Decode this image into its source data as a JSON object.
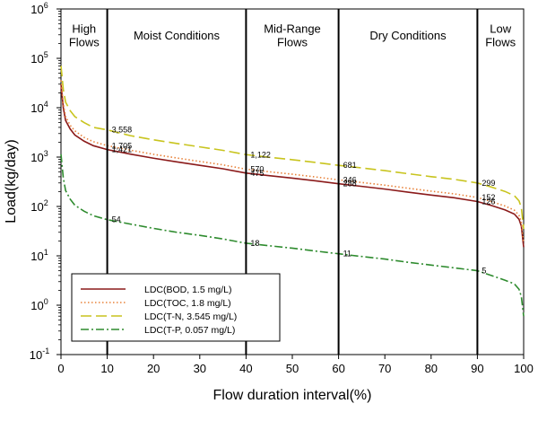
{
  "chart_data": {
    "type": "line",
    "title": "",
    "xlabel": "Flow duration interval(%)",
    "ylabel": "Load(kg/day)",
    "xlim": [
      0,
      100
    ],
    "ylim": [
      0.1,
      1000000
    ],
    "yscale": "log",
    "x_ticks": [
      "0",
      "10",
      "20",
      "30",
      "40",
      "50",
      "60",
      "70",
      "80",
      "90",
      "100"
    ],
    "y_ticks": [
      {
        "base": "10",
        "exp": "-1"
      },
      {
        "base": "10",
        "exp": "0"
      },
      {
        "base": "10",
        "exp": "1"
      },
      {
        "base": "10",
        "exp": "2"
      },
      {
        "base": "10",
        "exp": "3"
      },
      {
        "base": "10",
        "exp": "4"
      },
      {
        "base": "10",
        "exp": "5"
      },
      {
        "base": "10",
        "exp": "6"
      }
    ],
    "zone_boundaries": [
      10,
      40,
      60,
      90
    ],
    "zones": [
      {
        "lines": [
          "High",
          "Flows"
        ],
        "x_center": 5
      },
      {
        "lines": [
          "Moist Conditions"
        ],
        "x_center": 25
      },
      {
        "lines": [
          "Mid-Range",
          "Flows"
        ],
        "x_center": 50
      },
      {
        "lines": [
          "Dry Conditions"
        ],
        "x_center": 75
      },
      {
        "lines": [
          "Low",
          "Flows"
        ],
        "x_center": 95
      }
    ],
    "series": [
      {
        "name": "LDC(BOD, 1.5 mg/L)",
        "color": "#8b1a1a",
        "dash": "solid",
        "x": [
          0,
          0.5,
          1,
          2,
          3,
          5,
          7,
          10,
          15,
          20,
          25,
          30,
          35,
          40,
          45,
          50,
          55,
          60,
          65,
          70,
          75,
          80,
          85,
          90,
          93,
          96,
          98,
          99,
          99.5,
          100
        ],
        "values": [
          30000,
          10000,
          5500,
          3700,
          2800,
          2100,
          1700,
          1421,
          1150,
          950,
          800,
          680,
          580,
          475,
          420,
          375,
          330,
          288,
          255,
          225,
          195,
          170,
          150,
          126,
          105,
          85,
          70,
          55,
          40,
          15
        ]
      },
      {
        "name": "LDC(TOC, 1.8 mg/L)",
        "color": "#e8823a",
        "dash": "dotted",
        "x": [
          0,
          0.5,
          1,
          2,
          3,
          5,
          7,
          10,
          15,
          20,
          25,
          30,
          35,
          40,
          45,
          50,
          55,
          60,
          65,
          70,
          75,
          80,
          85,
          90,
          93,
          96,
          98,
          99,
          99.5,
          100
        ],
        "values": [
          36000,
          12000,
          6600,
          4400,
          3400,
          2500,
          2050,
          1705,
          1380,
          1140,
          960,
          816,
          696,
          570,
          504,
          450,
          396,
          346,
          306,
          270,
          234,
          204,
          180,
          152,
          126,
          102,
          84,
          66,
          48,
          18
        ]
      },
      {
        "name": "LDC(T-N, 3.545 mg/L)",
        "color": "#c8c41e",
        "dash": "dashed",
        "x": [
          0,
          0.5,
          1,
          2,
          3,
          5,
          7,
          10,
          15,
          20,
          25,
          30,
          35,
          40,
          45,
          50,
          55,
          60,
          65,
          70,
          75,
          80,
          85,
          90,
          93,
          96,
          98,
          99,
          99.5,
          100
        ],
        "values": [
          71000,
          23600,
          13000,
          8700,
          6600,
          5000,
          4000,
          3558,
          2720,
          2240,
          1890,
          1610,
          1370,
          1122,
          990,
          885,
          780,
          681,
          603,
          532,
          461,
          402,
          354,
          299,
          248,
          201,
          165,
          130,
          95,
          35
        ]
      },
      {
        "name": "LDC(T-P, 0.057 mg/L)",
        "color": "#2e8b2e",
        "dash": "dashdot",
        "x": [
          0,
          0.5,
          1,
          2,
          3,
          5,
          7,
          10,
          15,
          20,
          25,
          30,
          35,
          40,
          45,
          50,
          55,
          60,
          65,
          70,
          75,
          80,
          85,
          90,
          93,
          96,
          98,
          99,
          99.5,
          100
        ],
        "values": [
          1140,
          380,
          210,
          140,
          106,
          80,
          65,
          54,
          44,
          36,
          30,
          26,
          22,
          18,
          16,
          14.3,
          12.5,
          11,
          9.7,
          8.6,
          7.4,
          6.5,
          5.7,
          5,
          4,
          3.2,
          2.7,
          2.1,
          1.5,
          0.6
        ]
      }
    ],
    "annotations": [
      {
        "text": "3,558",
        "x": 10,
        "y": 3558,
        "series": 2
      },
      {
        "text": "1,705",
        "x": 10,
        "y": 1705,
        "series": 1
      },
      {
        "text": "1,421",
        "x": 10,
        "y": 1421,
        "series": 0
      },
      {
        "text": "54",
        "x": 10,
        "y": 54,
        "series": 3
      },
      {
        "text": "1,122",
        "x": 40,
        "y": 1122,
        "series": 2
      },
      {
        "text": "570",
        "x": 40,
        "y": 570,
        "series": 1
      },
      {
        "text": "475",
        "x": 40,
        "y": 475,
        "series": 0
      },
      {
        "text": "18",
        "x": 40,
        "y": 18,
        "series": 3
      },
      {
        "text": "681",
        "x": 60,
        "y": 681,
        "series": 2
      },
      {
        "text": "346",
        "x": 60,
        "y": 346,
        "series": 1
      },
      {
        "text": "288",
        "x": 60,
        "y": 288,
        "series": 0
      },
      {
        "text": "11",
        "x": 60,
        "y": 11,
        "series": 3
      },
      {
        "text": "299",
        "x": 90,
        "y": 299,
        "series": 2
      },
      {
        "text": "152",
        "x": 90,
        "y": 152,
        "series": 1
      },
      {
        "text": "126",
        "x": 90,
        "y": 126,
        "series": 0
      },
      {
        "text": "5",
        "x": 90,
        "y": 5,
        "series": 3
      }
    ],
    "legend": {
      "position": "bottom-left"
    },
    "grid": false
  }
}
